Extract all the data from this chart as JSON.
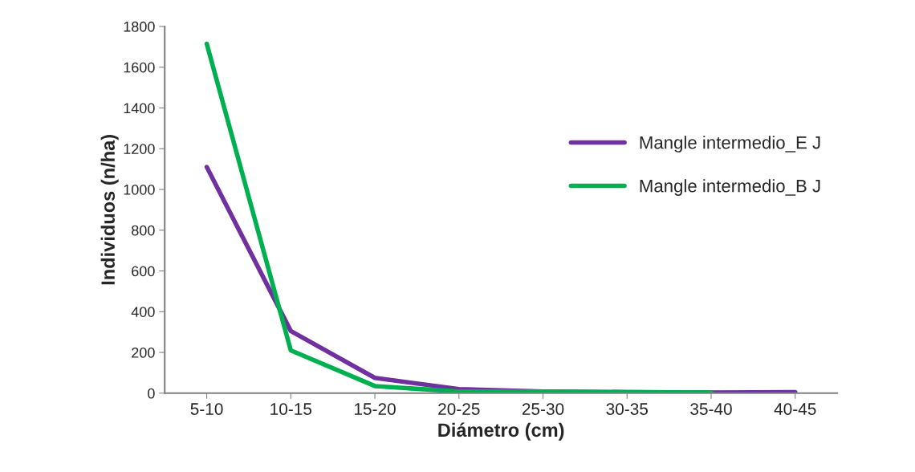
{
  "chart_data": {
    "type": "line",
    "xlabel": "Diámetro (cm)",
    "ylabel": "Individuos (n/ha)",
    "categories": [
      "5-10",
      "10-15",
      "15-20",
      "20-25",
      "25-30",
      "30-35",
      "35-40",
      "40-45"
    ],
    "series": [
      {
        "name": "Mangle intermedio_E J",
        "color": "#7030a0",
        "values": [
          1110,
          305,
          75,
          20,
          8,
          5,
          3,
          5
        ]
      },
      {
        "name": "Mangle intermedio_B J",
        "color": "#00b050",
        "values": [
          1715,
          210,
          35,
          8,
          8,
          5,
          3,
          null
        ]
      }
    ],
    "ylim": [
      0,
      1800
    ],
    "yticks": [
      0,
      200,
      400,
      600,
      800,
      1000,
      1200,
      1400,
      1600,
      1800
    ],
    "grid": false,
    "legend": "right",
    "marker": "none",
    "line_style": "solid"
  }
}
